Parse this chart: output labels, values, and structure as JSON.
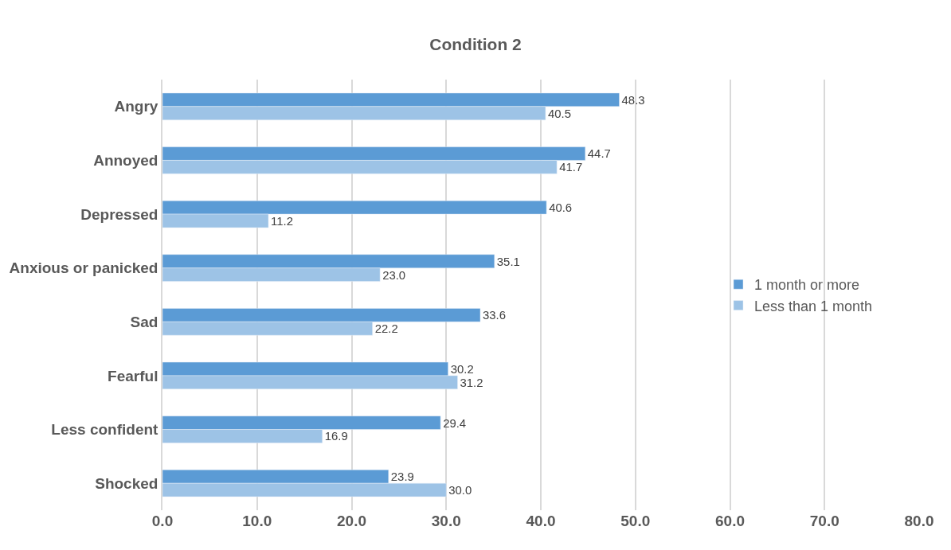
{
  "chart_data": {
    "type": "bar",
    "orientation": "horizontal",
    "title": "Condition 2",
    "categories": [
      "Angry",
      "Annoyed",
      "Depressed",
      "Anxious or panicked",
      "Sad",
      "Fearful",
      "Less confident",
      "Shocked"
    ],
    "series": [
      {
        "name": "1 month or more",
        "color": "#5b9bd5",
        "values": [
          48.3,
          44.7,
          40.6,
          35.1,
          33.6,
          30.2,
          29.4,
          23.9
        ],
        "value_labels": [
          "48.3",
          "44.7",
          "40.6",
          "35.1",
          "33.6",
          "30.2",
          "29.4",
          "23.9"
        ]
      },
      {
        "name": "Less than 1 month",
        "color": "#9dc3e6",
        "values": [
          40.5,
          41.7,
          11.2,
          23.0,
          22.2,
          31.2,
          16.9,
          30.0
        ],
        "value_labels": [
          "40.5",
          "41.7",
          "11.2",
          "23.0",
          "22.2",
          "31.2",
          "16.9",
          "30.0"
        ]
      }
    ],
    "xlim": [
      0,
      80
    ],
    "xticks": [
      {
        "value": 0,
        "label": "0.0"
      },
      {
        "value": 10,
        "label": "10.0"
      },
      {
        "value": 20,
        "label": "20.0"
      },
      {
        "value": 30,
        "label": "30.0"
      },
      {
        "value": 40,
        "label": "40.0"
      },
      {
        "value": 50,
        "label": "50.0"
      },
      {
        "value": 60,
        "label": "60.0"
      },
      {
        "value": 70,
        "label": "70.0"
      },
      {
        "value": 80,
        "label": "80.0"
      }
    ],
    "grid": "x",
    "legend": "right"
  }
}
